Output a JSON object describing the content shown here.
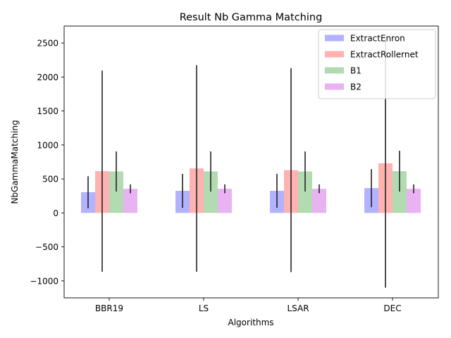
{
  "chart_data": {
    "type": "bar",
    "title": "Result Nb Gamma Matching",
    "xlabel": "Algorithms",
    "ylabel": "NbGammaMatching",
    "categories": [
      "BBR19",
      "LS",
      "LSAR",
      "DEC"
    ],
    "ylim": [
      -1250,
      2750
    ],
    "yticks": [
      -1000,
      -500,
      0,
      500,
      1000,
      1500,
      2000,
      2500
    ],
    "ytick_labels": [
      "−1000",
      "−500",
      "0",
      "500",
      "1000",
      "1500",
      "2000",
      "2500"
    ],
    "grid": false,
    "legend_position": "top-right",
    "series": [
      {
        "name": "ExtractEnron",
        "color": "#b2b2ff",
        "values": [
          305,
          325,
          325,
          365
        ],
        "error": [
          235,
          250,
          250,
          280
        ]
      },
      {
        "name": "ExtractRollernet",
        "color": "#ffb2b2",
        "values": [
          615,
          655,
          630,
          730
        ],
        "error": [
          1480,
          1520,
          1500,
          1830
        ]
      },
      {
        "name": "B1",
        "color": "#b2dbb2",
        "values": [
          610,
          610,
          610,
          615
        ],
        "error": [
          295,
          295,
          295,
          300
        ]
      },
      {
        "name": "B2",
        "color": "#e9b2f2",
        "values": [
          355,
          355,
          355,
          355
        ],
        "error": [
          65,
          65,
          65,
          65
        ]
      }
    ]
  }
}
